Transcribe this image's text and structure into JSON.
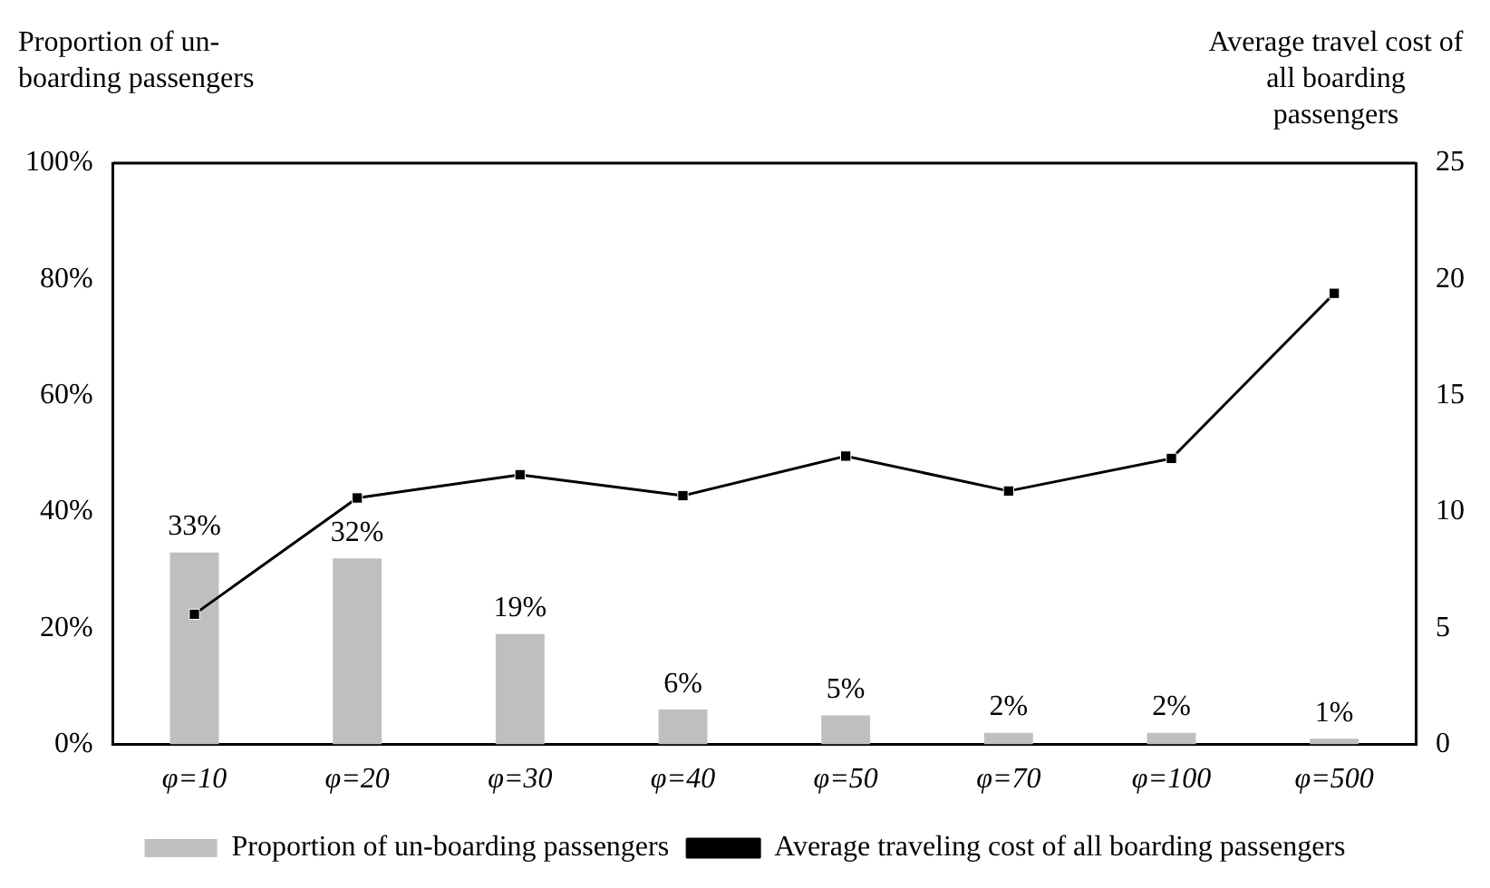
{
  "chart_data": {
    "type": "bar",
    "ylabel": "Proportion of un-boarding passengers",
    "y2label": "Average travel cost of all boarding passengers",
    "categories": [
      "φ=10",
      "φ=20",
      "φ=30",
      "φ=40",
      "φ=50",
      "φ=70",
      "φ=100",
      "φ=500"
    ],
    "series": [
      {
        "name": "Proportion of un-boarding passengers",
        "color": "#bfbfbf",
        "values": [
          33,
          32,
          19,
          6,
          5,
          2,
          2,
          1
        ],
        "value_labels": [
          "33%",
          "32%",
          "19%",
          "6%",
          "5%",
          "2%",
          "2%",
          "1%"
        ]
      },
      {
        "name": "Average traveling cost of all boarding passengers",
        "type": "line",
        "axis": "y2",
        "color": "#000000",
        "marker": "square",
        "values": [
          5.6,
          10.6,
          11.6,
          10.7,
          12.4,
          10.9,
          12.3,
          19.4
        ]
      }
    ],
    "ylim": [
      0,
      100
    ],
    "yticks": [
      {
        "value": 0,
        "label": "0%"
      },
      {
        "value": 20,
        "label": "20%"
      },
      {
        "value": 40,
        "label": "40%"
      },
      {
        "value": 60,
        "label": "60%"
      },
      {
        "value": 80,
        "label": "80%"
      },
      {
        "value": 100,
        "label": "100%"
      }
    ],
    "y2lim": [
      0,
      25
    ],
    "y2ticks": [
      0,
      5,
      10,
      15,
      20,
      25
    ],
    "grid": false,
    "legend": "bottom"
  }
}
